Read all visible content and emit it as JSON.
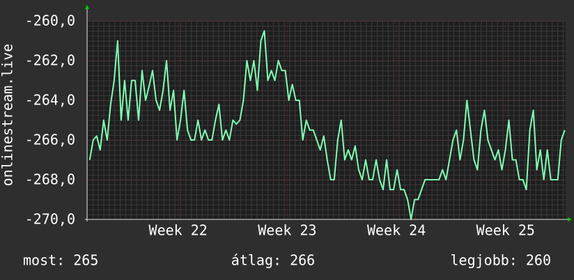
{
  "chart_data": {
    "type": "line",
    "ylabel": "onlinestream.live",
    "xlim": [
      21.166,
      25.55
    ],
    "xticks": [
      {
        "value": 22,
        "label": "Week 22"
      },
      {
        "value": 23,
        "label": "Week 23"
      },
      {
        "value": 24,
        "label": "Week 24"
      },
      {
        "value": 25,
        "label": "Week 25"
      }
    ],
    "ylim": [
      -270,
      -260
    ],
    "yticks": [
      {
        "value": -260,
        "label": "-260,0"
      },
      {
        "value": -262,
        "label": "-262,0"
      },
      {
        "value": -264,
        "label": "-264,0"
      },
      {
        "value": -266,
        "label": "-266,0"
      },
      {
        "value": -268,
        "label": "-268,0"
      },
      {
        "value": -270,
        "label": "-270,0"
      }
    ],
    "grid": true,
    "series": [
      {
        "color": "#80ffb4",
        "x": [
          21.19,
          21.222,
          21.254,
          21.286,
          21.318,
          21.35,
          21.382,
          21.414,
          21.446,
          21.478,
          21.51,
          21.542,
          21.574,
          21.606,
          21.638,
          21.67,
          21.702,
          21.734,
          21.766,
          21.798,
          21.83,
          21.862,
          21.894,
          21.926,
          21.958,
          21.99,
          22.022,
          22.054,
          22.086,
          22.118,
          22.15,
          22.182,
          22.214,
          22.246,
          22.278,
          22.31,
          22.342,
          22.374,
          22.406,
          22.438,
          22.47,
          22.502,
          22.534,
          22.566,
          22.598,
          22.63,
          22.662,
          22.694,
          22.726,
          22.758,
          22.79,
          22.822,
          22.854,
          22.886,
          22.918,
          22.95,
          22.982,
          23.014,
          23.046,
          23.078,
          23.11,
          23.142,
          23.174,
          23.206,
          23.238,
          23.27,
          23.302,
          23.334,
          23.366,
          23.398,
          23.43,
          23.462,
          23.494,
          23.526,
          23.558,
          23.59,
          23.622,
          23.654,
          23.686,
          23.718,
          23.75,
          23.782,
          23.814,
          23.846,
          23.878,
          23.91,
          23.942,
          23.974,
          24.006,
          24.038,
          24.07,
          24.102,
          24.134,
          24.166,
          24.198,
          24.23,
          24.262,
          24.294,
          24.326,
          24.358,
          24.39,
          24.422,
          24.454,
          24.486,
          24.518,
          24.55,
          24.582,
          24.614,
          24.646,
          24.678,
          24.71,
          24.742,
          24.774,
          24.806,
          24.838,
          24.87,
          24.902,
          24.934,
          24.966,
          24.998,
          25.03,
          25.062,
          25.094,
          25.126,
          25.158,
          25.19,
          25.222,
          25.254,
          25.286,
          25.318,
          25.35,
          25.382,
          25.414,
          25.446,
          25.478,
          25.51,
          25.542
        ],
        "values": [
          -267,
          -266,
          -265.8,
          -266.5,
          -265,
          -266,
          -264.2,
          -263,
          -261,
          -265,
          -263,
          -265,
          -263,
          -263,
          -265,
          -262.5,
          -264,
          -263.3,
          -262.5,
          -264,
          -264.5,
          -263.5,
          -262,
          -264.5,
          -263.5,
          -266,
          -265,
          -263.5,
          -265.5,
          -266,
          -266,
          -265,
          -266,
          -265.5,
          -266,
          -266,
          -265,
          -264.2,
          -266,
          -265.5,
          -266,
          -265,
          -265.2,
          -265,
          -264,
          -262,
          -263,
          -262,
          -263.5,
          -261,
          -260.5,
          -263,
          -262.5,
          -263,
          -262,
          -262.5,
          -262.5,
          -264,
          -263.2,
          -264,
          -264,
          -266,
          -265,
          -265.5,
          -265.5,
          -266,
          -266.5,
          -265.8,
          -267,
          -268,
          -268,
          -266,
          -265,
          -267,
          -266.5,
          -267,
          -266.3,
          -267.5,
          -268,
          -267,
          -268,
          -268,
          -267,
          -268,
          -268.5,
          -267,
          -268.5,
          -268.5,
          -267.5,
          -268.5,
          -268.5,
          -269,
          -270,
          -269,
          -269,
          -268.5,
          -268,
          -268,
          -268,
          -268,
          -268,
          -267.5,
          -268,
          -267,
          -266,
          -265.5,
          -267,
          -266,
          -264,
          -265.5,
          -267,
          -267.5,
          -265.5,
          -264.5,
          -266,
          -266.5,
          -267,
          -266.5,
          -267.5,
          -266.5,
          -265,
          -267,
          -267,
          -268,
          -268,
          -268.5,
          -265.5,
          -264.5,
          -267.5,
          -266.5,
          -268,
          -266.5,
          -268,
          -268,
          -268,
          -266,
          -265.5
        ]
      }
    ],
    "footer": [
      "most: 265",
      "átlag: 266",
      "legjobb: 260"
    ]
  }
}
